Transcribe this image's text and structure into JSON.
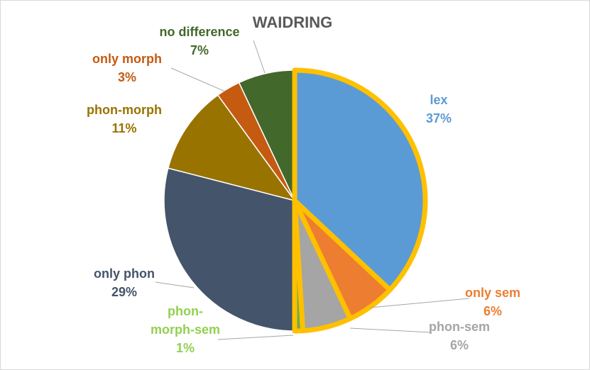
{
  "chart_data": {
    "type": "pie",
    "title": "WAIDRING",
    "start_angle_deg": 0,
    "direction": "clockwise",
    "legend": "none",
    "highlighted_outline_color": "#FFC000",
    "slices": [
      {
        "name": "lex",
        "value": 37,
        "label": "37%",
        "color": "#5B9BD5",
        "label_color": "#5B9BD5",
        "highlighted": true
      },
      {
        "name": "only sem",
        "value": 6,
        "label": "6%",
        "color": "#ED7D31",
        "label_color": "#ED7D31",
        "highlighted": true
      },
      {
        "name": "phon-sem",
        "value": 6,
        "label": "6%",
        "color": "#A5A5A5",
        "label_color": "#A5A5A5",
        "highlighted": true
      },
      {
        "name_lines": [
          "phon-",
          "morph-sem"
        ],
        "value": 1,
        "label": "1%",
        "color": "#70AD47",
        "label_color": "#92D050",
        "highlighted": true
      },
      {
        "name": "only phon",
        "value": 29,
        "label": "29%",
        "color": "#44546A",
        "label_color": "#44546A",
        "highlighted": false
      },
      {
        "name": "phon-morph",
        "value": 11,
        "label": "11%",
        "color": "#997300",
        "label_color": "#997300",
        "highlighted": false
      },
      {
        "name": "only morph",
        "value": 3,
        "label": "3%",
        "color": "#C55A11",
        "label_color": "#C55A11",
        "highlighted": false
      },
      {
        "name": "no difference",
        "value": 7,
        "label": "7%",
        "color": "#43682B",
        "label_color": "#43682B",
        "highlighted": false
      }
    ]
  }
}
